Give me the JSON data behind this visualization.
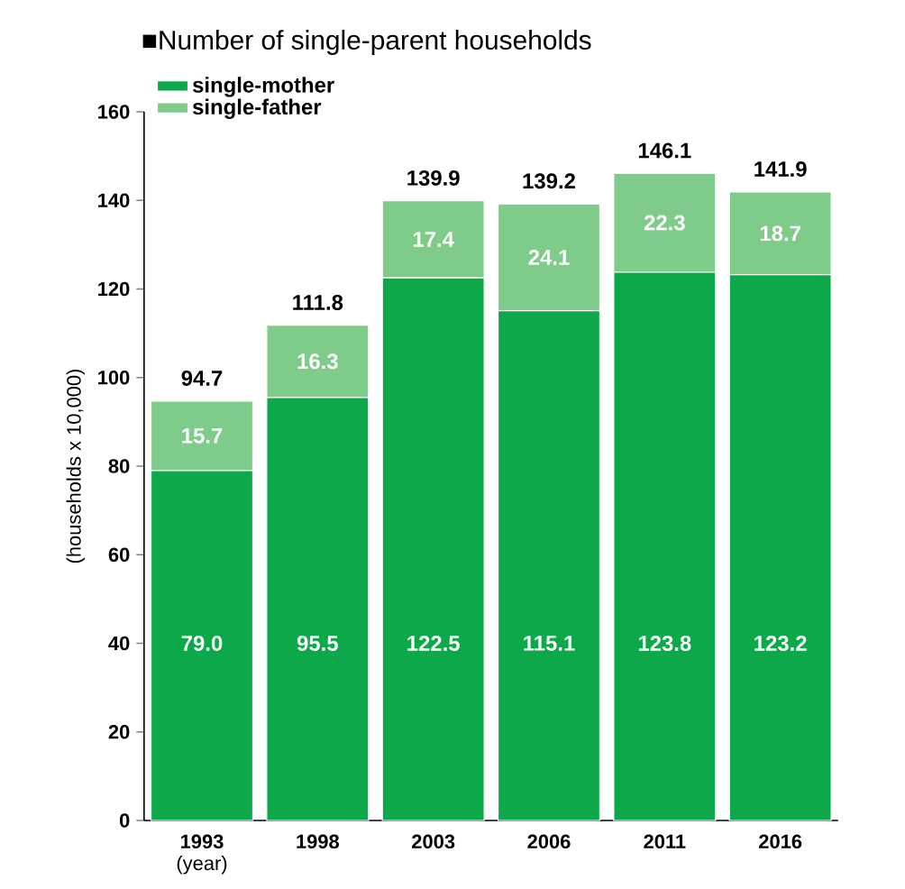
{
  "chart_data": {
    "type": "bar",
    "title": "■Number of single-parent households",
    "xlabel": "(year)",
    "ylabel": "(households x 10,000)",
    "categories": [
      "1993",
      "1998",
      "2003",
      "2006",
      "2011",
      "2016"
    ],
    "stacked": true,
    "legend": "top left",
    "grid": false,
    "series": [
      {
        "name": "single-mother",
        "color": "#0ca84a",
        "values": [
          79.0,
          95.5,
          122.5,
          115.1,
          123.8,
          123.2
        ],
        "value_labels": [
          "79.0",
          "95.5",
          "122.5",
          "115.1",
          "123.8",
          "123.2"
        ]
      },
      {
        "name": "single-father",
        "color": "#7fcb8a",
        "values": [
          15.7,
          16.3,
          17.4,
          24.1,
          22.3,
          18.7
        ],
        "value_labels": [
          "15.7",
          "16.3",
          "17.4",
          "24.1",
          "22.3",
          "18.7"
        ]
      }
    ],
    "totals": [
      "94.7",
      "111.8",
      "139.9",
      "139.2",
      "146.1",
      "141.9"
    ],
    "ylim": [
      0,
      160
    ],
    "yticks": [
      0,
      20,
      40,
      60,
      80,
      100,
      120,
      140,
      160
    ]
  }
}
